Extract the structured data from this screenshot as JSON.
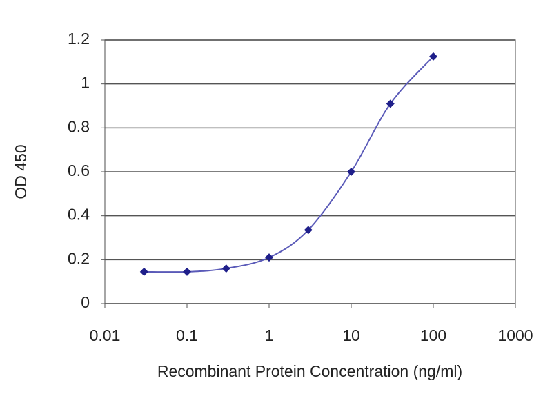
{
  "chart_data": {
    "type": "line",
    "x_label": "Recombinant Protein Concentration (ng/ml)",
    "y_label": "OD 450",
    "x": [
      0.03,
      0.1,
      0.3,
      1,
      3,
      10,
      30,
      100
    ],
    "series": [
      {
        "name": "OD 450",
        "color": "#1f1f8a",
        "line_color": "#5a5ab8",
        "marker": "diamond",
        "values": [
          0.145,
          0.145,
          0.16,
          0.21,
          0.335,
          0.6,
          0.91,
          1.125
        ]
      }
    ],
    "xscale": "log",
    "xlim": [
      0.01,
      1000
    ],
    "xticks": [
      0.01,
      0.1,
      1,
      10,
      100,
      1000
    ],
    "ylim": [
      0,
      1.2
    ],
    "yticks": [
      0,
      0.2,
      0.4,
      0.6,
      0.8,
      1,
      1.2
    ],
    "grid": true,
    "legend": false
  }
}
